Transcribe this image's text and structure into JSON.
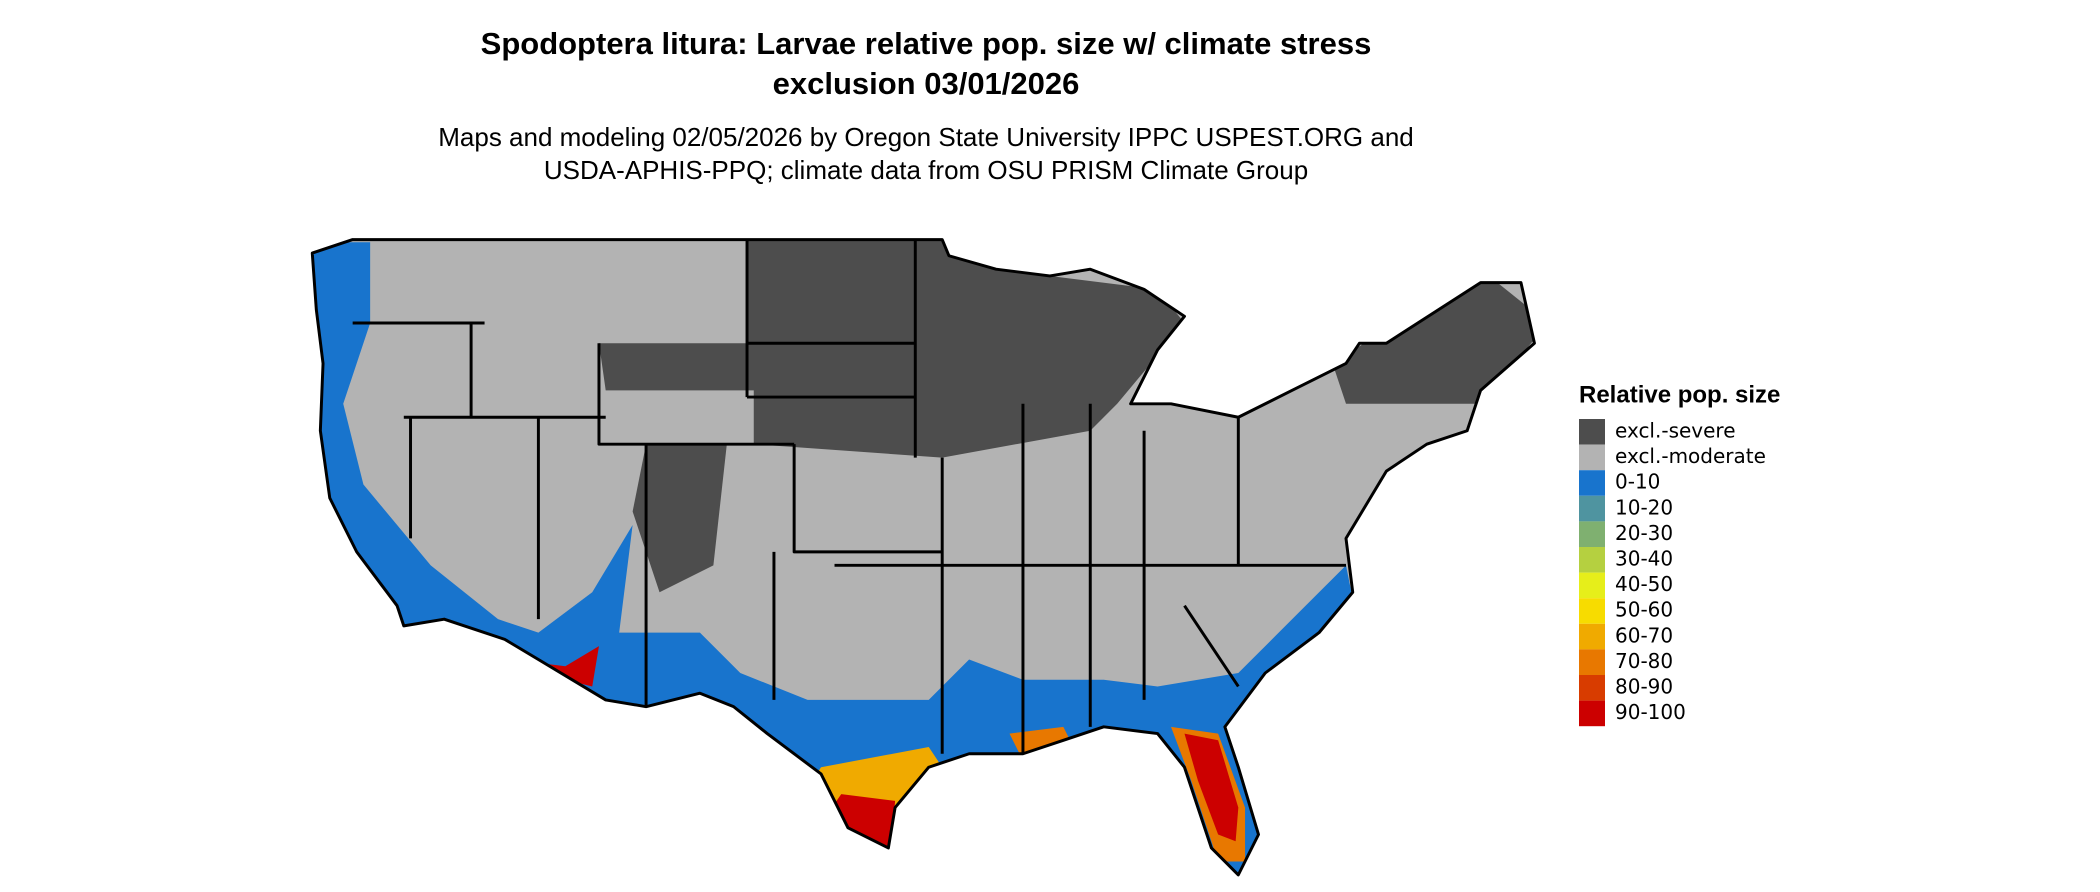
{
  "title": [
    "Spodoptera litura: Larvae relative pop. size w/ climate stress",
    "exclusion 03/01/2026"
  ],
  "subtitle": [
    "Maps and modeling 02/05/2026 by Oregon State University IPPC USPEST.ORG and",
    "USDA-APHIS-PPQ; climate data from OSU PRISM Climate Group"
  ],
  "legend": {
    "title": "Relative pop. size",
    "items": [
      {
        "label": "excl.-severe",
        "color": "#4d4d4d"
      },
      {
        "label": "excl.-moderate",
        "color": "#b3b3b3"
      },
      {
        "label": "0-10",
        "color": "#1874cd"
      },
      {
        "label": "10-20",
        "color": "#4f94a0"
      },
      {
        "label": "20-30",
        "color": "#7fb070"
      },
      {
        "label": "30-40",
        "color": "#b5d040"
      },
      {
        "label": "40-50",
        "color": "#e6ee1a"
      },
      {
        "label": "50-60",
        "color": "#f7dc00"
      },
      {
        "label": "60-70",
        "color": "#f0aa00"
      },
      {
        "label": "70-80",
        "color": "#e87800"
      },
      {
        "label": "80-90",
        "color": "#d83c00"
      },
      {
        "label": "90-100",
        "color": "#cc0000"
      }
    ]
  }
}
